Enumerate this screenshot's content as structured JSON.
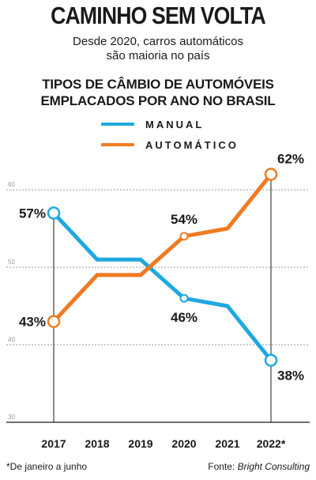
{
  "header": {
    "title": "CAMINHO SEM VOLTA",
    "subtitle_line1": "Desde 2020, carros automáticos",
    "subtitle_line2": "são maioria no país"
  },
  "chart_title_line1": "TIPOS DE CÂMBIO DE AUTOMÓVEIS",
  "chart_title_line2": "EMPLACADOS POR ANO NO BRASIL",
  "chart_data": {
    "type": "line",
    "title": "TIPOS DE CÂMBIO DE AUTOMÓVEIS EMPLACADOS POR ANO NO BRASIL",
    "categories": [
      "2017",
      "2018",
      "2019",
      "2020",
      "2021",
      "2022*"
    ],
    "series": [
      {
        "name": "MANUAL",
        "color": "#1fa8e0",
        "values": [
          57,
          51,
          51,
          46,
          45,
          38
        ]
      },
      {
        "name": "AUTOMÁTICO",
        "color": "#f07a22",
        "values": [
          43,
          49,
          49,
          54,
          55,
          62
        ]
      }
    ],
    "ylim": [
      30,
      65
    ],
    "yticks": [
      "30",
      "40",
      "50",
      "60"
    ],
    "grid": true,
    "legend": "top-center",
    "data_labels": [
      {
        "series": 0,
        "index": 0,
        "text": "57%"
      },
      {
        "series": 0,
        "index": 3,
        "text": "46%"
      },
      {
        "series": 0,
        "index": 5,
        "text": "38%"
      },
      {
        "series": 1,
        "index": 0,
        "text": "43%"
      },
      {
        "series": 1,
        "index": 3,
        "text": "54%"
      },
      {
        "series": 1,
        "index": 5,
        "text": "62%"
      }
    ],
    "xlabel": "",
    "ylabel": ""
  },
  "footnote": "*De janeiro a junho",
  "source_prefix": "Fonte: ",
  "source_name": "Bright Consulting"
}
